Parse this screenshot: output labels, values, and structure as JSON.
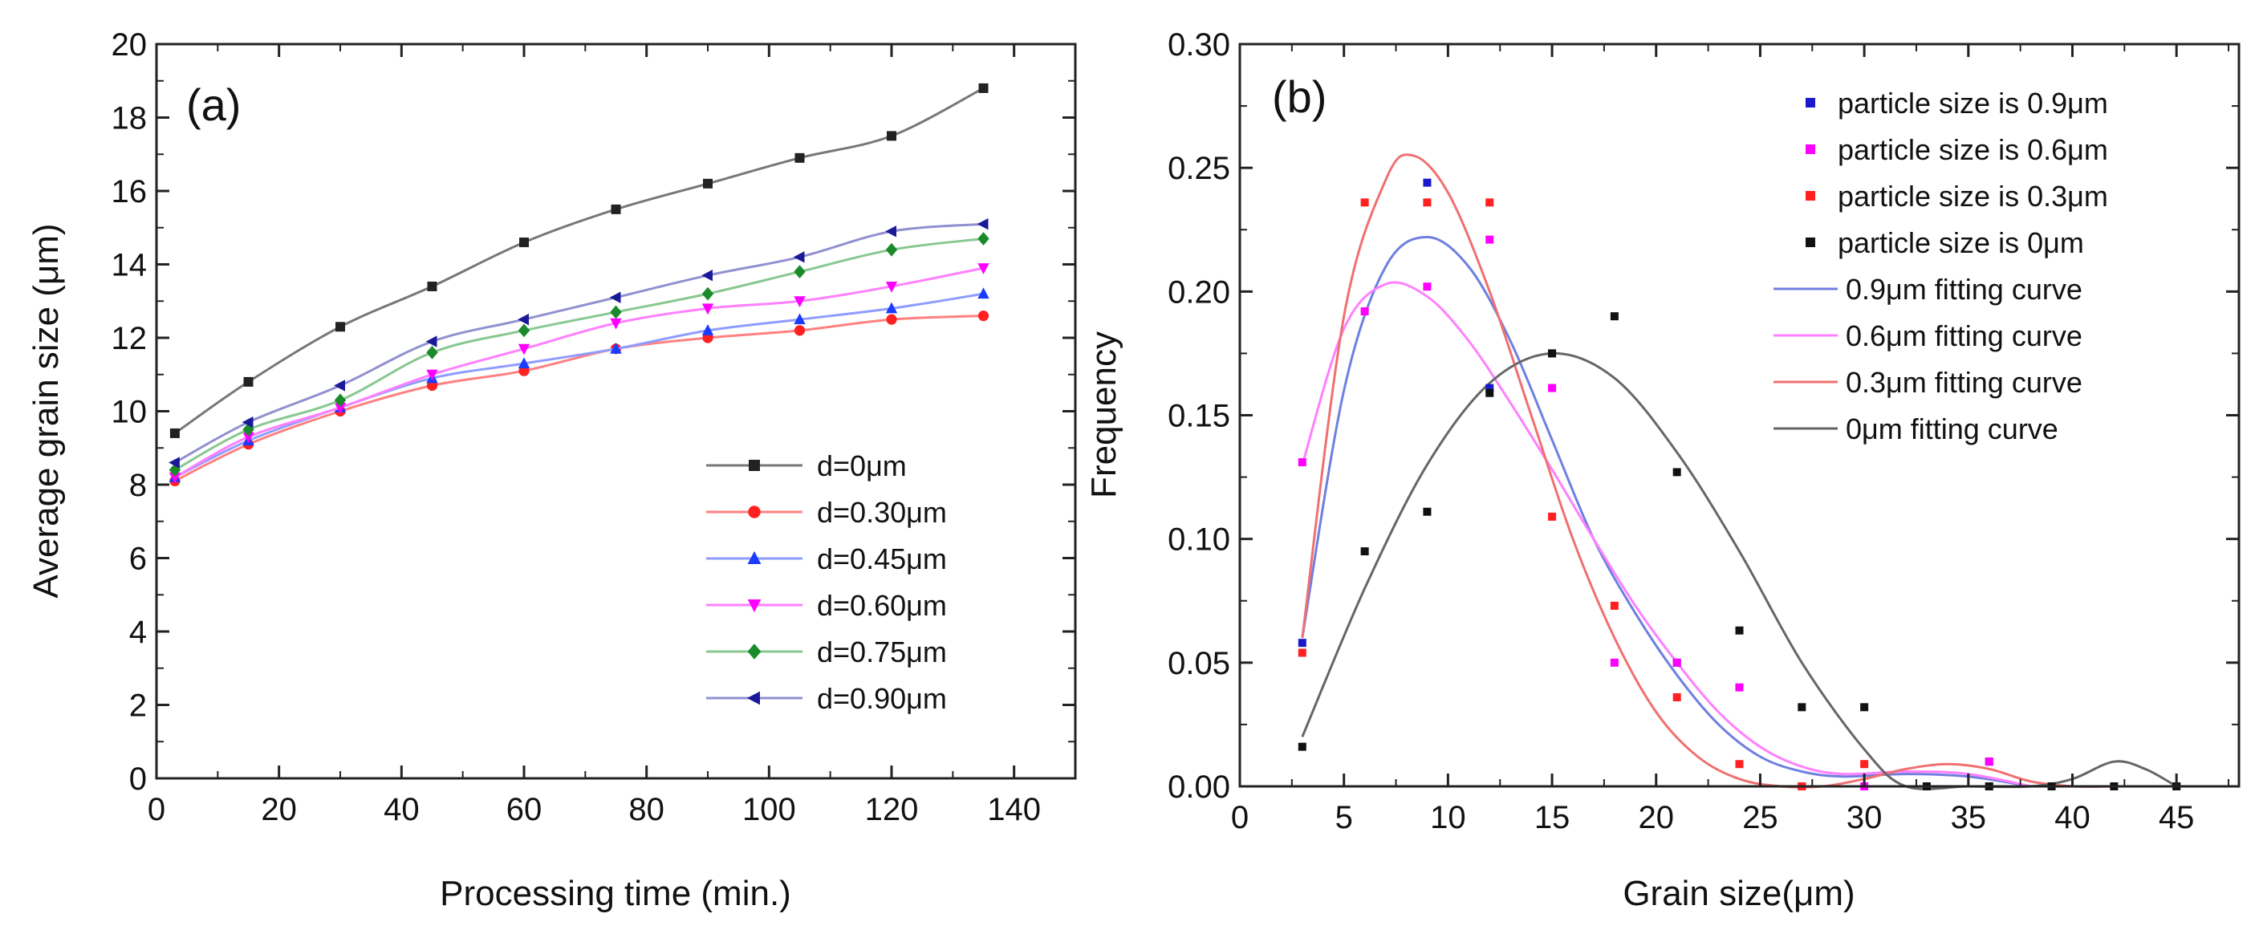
{
  "chart_data": [
    {
      "type": "line",
      "panel_label": "(a)",
      "xlabel": "Processing time (min.)",
      "ylabel": "Average grain size (μm)",
      "xlim": [
        0,
        150
      ],
      "ylim": [
        0,
        20
      ],
      "xticks": [
        0,
        20,
        40,
        60,
        80,
        100,
        120,
        140
      ],
      "yticks": [
        0,
        2,
        4,
        6,
        8,
        10,
        12,
        14,
        16,
        18,
        20
      ],
      "legend_position": "bottom-right",
      "x": [
        3,
        15,
        30,
        45,
        60,
        75,
        90,
        105,
        120,
        135
      ],
      "series": [
        {
          "name": "d=0μm",
          "color": "#222222",
          "lineColor": "#777777",
          "marker": "square",
          "values": [
            9.4,
            10.8,
            12.3,
            13.4,
            14.6,
            15.5,
            16.2,
            16.9,
            17.5,
            18.8
          ]
        },
        {
          "name": "d=0.30μm",
          "color": "#ff2020",
          "lineColor": "#ff8080",
          "marker": "circle",
          "values": [
            8.1,
            9.1,
            10.0,
            10.7,
            11.1,
            11.7,
            12.0,
            12.2,
            12.5,
            12.6
          ]
        },
        {
          "name": "d=0.45μm",
          "color": "#1a3cff",
          "lineColor": "#8f9cff",
          "marker": "triangle-up",
          "values": [
            8.2,
            9.2,
            10.1,
            10.9,
            11.3,
            11.7,
            12.2,
            12.5,
            12.8,
            13.2
          ]
        },
        {
          "name": "d=0.60μm",
          "color": "#ff00ff",
          "lineColor": "#ff80ff",
          "marker": "triangle-down",
          "values": [
            8.2,
            9.3,
            10.1,
            11.0,
            11.7,
            12.4,
            12.8,
            13.0,
            13.4,
            13.9
          ]
        },
        {
          "name": "d=0.75μm",
          "color": "#1a8a2a",
          "lineColor": "#88c890",
          "marker": "diamond",
          "values": [
            8.4,
            9.5,
            10.3,
            11.6,
            12.2,
            12.7,
            13.2,
            13.8,
            14.4,
            14.7
          ]
        },
        {
          "name": "d=0.90μm",
          "color": "#1a1a99",
          "lineColor": "#9090d0",
          "marker": "triangle-left",
          "values": [
            8.6,
            9.7,
            10.7,
            11.9,
            12.5,
            13.1,
            13.7,
            14.2,
            14.9,
            15.1
          ]
        }
      ]
    },
    {
      "type": "scatter",
      "panel_label": "(b)",
      "xlabel": "Grain size(μm)",
      "ylabel": "Frequency",
      "xlim": [
        0,
        48
      ],
      "ylim": [
        0,
        0.3
      ],
      "xticks": [
        0,
        5,
        10,
        15,
        20,
        25,
        30,
        35,
        40,
        45
      ],
      "yticks": [
        "0.00",
        "0.05",
        "0.10",
        "0.15",
        "0.20",
        "0.25",
        "0.30"
      ],
      "legend_position": "top-right",
      "scatter_series": [
        {
          "name": "particle size is 0.9μm",
          "color": "#1a1acc",
          "points": [
            [
              3,
              0.058
            ],
            [
              9,
              0.244
            ],
            [
              12,
              0.161
            ],
            [
              15,
              0.175
            ],
            [
              21,
              0.05
            ],
            [
              27,
              0.0
            ],
            [
              36,
              0.01
            ]
          ]
        },
        {
          "name": "particle size is 0.6μm",
          "color": "#ff00ff",
          "points": [
            [
              3,
              0.131
            ],
            [
              6,
              0.192
            ],
            [
              9,
              0.202
            ],
            [
              12,
              0.221
            ],
            [
              15,
              0.161
            ],
            [
              18,
              0.05
            ],
            [
              21,
              0.05
            ],
            [
              24,
              0.04
            ],
            [
              30,
              0.0
            ],
            [
              36,
              0.01
            ]
          ]
        },
        {
          "name": "particle size is 0.3μm",
          "color": "#ff2020",
          "points": [
            [
              3,
              0.054
            ],
            [
              6,
              0.236
            ],
            [
              9,
              0.236
            ],
            [
              12,
              0.236
            ],
            [
              15,
              0.109
            ],
            [
              18,
              0.073
            ],
            [
              21,
              0.036
            ],
            [
              24,
              0.009
            ],
            [
              27,
              0.0
            ],
            [
              30,
              0.009
            ],
            [
              36,
              0.0
            ],
            [
              45,
              0.0
            ]
          ]
        },
        {
          "name": "particle size is 0μm",
          "color": "#111111",
          "points": [
            [
              3,
              0.016
            ],
            [
              6,
              0.095
            ],
            [
              9,
              0.111
            ],
            [
              12,
              0.159
            ],
            [
              15,
              0.175
            ],
            [
              18,
              0.19
            ],
            [
              21,
              0.127
            ],
            [
              24,
              0.063
            ],
            [
              27,
              0.032
            ],
            [
              30,
              0.032
            ],
            [
              33,
              0.0
            ],
            [
              36,
              0.0
            ],
            [
              39,
              0.0
            ],
            [
              42,
              0.0
            ],
            [
              45,
              0.0
            ]
          ]
        }
      ],
      "curve_series": [
        {
          "name": "0.9μm fitting curve",
          "color": "#6f7fe0",
          "points": [
            [
              3,
              0.06
            ],
            [
              5,
              0.16
            ],
            [
              7,
              0.21
            ],
            [
              9,
              0.222
            ],
            [
              11,
              0.21
            ],
            [
              13,
              0.18
            ],
            [
              15,
              0.14
            ],
            [
              17,
              0.1
            ],
            [
              19,
              0.07
            ],
            [
              21,
              0.045
            ],
            [
              23,
              0.025
            ],
            [
              25,
              0.012
            ],
            [
              27,
              0.006
            ],
            [
              29,
              0.004
            ],
            [
              32,
              0.005
            ],
            [
              35,
              0.004
            ],
            [
              38,
              0.0
            ]
          ]
        },
        {
          "name": "0.6μm fitting curve",
          "color": "#ff80ff",
          "points": [
            [
              3,
              0.13
            ],
            [
              5,
              0.185
            ],
            [
              7,
              0.203
            ],
            [
              9,
              0.198
            ],
            [
              11,
              0.18
            ],
            [
              13,
              0.155
            ],
            [
              15,
              0.128
            ],
            [
              17,
              0.1
            ],
            [
              19,
              0.073
            ],
            [
              21,
              0.05
            ],
            [
              23,
              0.03
            ],
            [
              25,
              0.016
            ],
            [
              27,
              0.008
            ],
            [
              29,
              0.005
            ],
            [
              32,
              0.006
            ],
            [
              35,
              0.005
            ],
            [
              38,
              0.0
            ]
          ]
        },
        {
          "name": "0.3μm fitting curve",
          "color": "#f07070",
          "points": [
            [
              3,
              0.06
            ],
            [
              5,
              0.19
            ],
            [
              7,
              0.245
            ],
            [
              8.3,
              0.255
            ],
            [
              10,
              0.24
            ],
            [
              12,
              0.2
            ],
            [
              14,
              0.15
            ],
            [
              16,
              0.1
            ],
            [
              18,
              0.06
            ],
            [
              20,
              0.03
            ],
            [
              22,
              0.012
            ],
            [
              24,
              0.003
            ],
            [
              26,
              0.0
            ],
            [
              28,
              0.0
            ],
            [
              30,
              0.003
            ],
            [
              32,
              0.007
            ],
            [
              34,
              0.009
            ],
            [
              36,
              0.007
            ],
            [
              38,
              0.002
            ],
            [
              40,
              0.0
            ],
            [
              42,
              0.0
            ],
            [
              44,
              0.0
            ]
          ]
        },
        {
          "name": "0μm fitting curve",
          "color": "#666666",
          "points": [
            [
              3,
              0.02
            ],
            [
              6,
              0.08
            ],
            [
              9,
              0.13
            ],
            [
              12,
              0.163
            ],
            [
              15,
              0.175
            ],
            [
              18,
              0.165
            ],
            [
              21,
              0.135
            ],
            [
              24,
              0.095
            ],
            [
              27,
              0.05
            ],
            [
              30,
              0.015
            ],
            [
              32,
              0.0
            ],
            [
              35,
              0.0
            ],
            [
              38,
              0.0
            ],
            [
              40,
              0.003
            ],
            [
              42,
              0.01
            ],
            [
              43.5,
              0.007
            ],
            [
              45,
              0.0
            ]
          ]
        }
      ]
    }
  ]
}
